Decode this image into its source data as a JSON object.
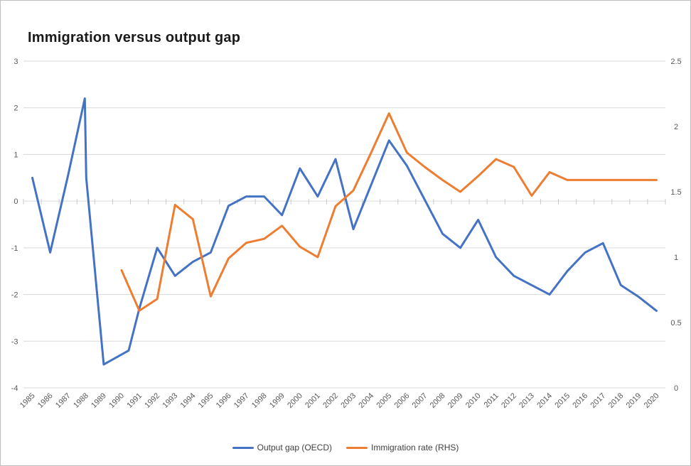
{
  "title": "Immigration versus output gap",
  "colors": {
    "output_gap": "#4472C4",
    "immigration_rate": "#ED7D31",
    "gridline": "#D9D9D9",
    "tick_mark": "#C9C9C9",
    "axis_text": "#595959",
    "legend_text": "#404040",
    "title_text": "#1A1A1A",
    "frame_border": "#BFBFBF"
  },
  "chart_data": {
    "type": "line",
    "title": "Immigration versus output gap",
    "grid": "horizontal",
    "legend_position": "bottom",
    "categories": [
      "1985",
      "1986",
      "1987",
      "1988",
      "1989",
      "1990",
      "1991",
      "1992",
      "1993",
      "1994",
      "1995",
      "1996",
      "1997",
      "1998",
      "1999",
      "2000",
      "2001",
      "2002",
      "2003",
      "2004",
      "2005",
      "2006",
      "2007",
      "2008",
      "2009",
      "2010",
      "2011",
      "2012",
      "2013",
      "2014",
      "2015",
      "2016",
      "2017",
      "2018",
      "2019",
      "2020"
    ],
    "left_axis": {
      "min": -4,
      "max": 3,
      "ticks": [
        "3",
        "2",
        "1",
        "0",
        "-1",
        "-2",
        "-3",
        "-4"
      ]
    },
    "right_axis": {
      "min": 0,
      "max": 2.5,
      "ticks": [
        "2.5",
        "2",
        "1.5",
        "1",
        "0.5",
        "0"
      ]
    },
    "series": [
      {
        "name": "Output gap (OECD)",
        "key": "output-gap",
        "axis": "left",
        "color": "#4472C4",
        "points": [
          [
            1985,
            0.5
          ],
          [
            1986,
            -1.1
          ],
          [
            1987,
            0.55
          ],
          [
            1987.94,
            2.2
          ],
          [
            1988.02,
            0.5
          ],
          [
            1989,
            -3.5
          ],
          [
            1990.4,
            -3.2
          ],
          [
            1991,
            -2.3
          ],
          [
            1992,
            -1.0
          ],
          [
            1993,
            -1.6
          ],
          [
            1994,
            -1.3
          ],
          [
            1995,
            -1.1
          ],
          [
            1996,
            -0.1
          ],
          [
            1997,
            0.1
          ],
          [
            1998,
            0.1
          ],
          [
            1999,
            -0.3
          ],
          [
            2000,
            0.7
          ],
          [
            2001,
            0.1
          ],
          [
            2002,
            0.9
          ],
          [
            2003,
            -0.6
          ],
          [
            2004,
            0.35
          ],
          [
            2005,
            1.3
          ],
          [
            2006,
            0.76
          ],
          [
            2007,
            0.03
          ],
          [
            2008,
            -0.7
          ],
          [
            2009,
            -1.0
          ],
          [
            2010,
            -0.4
          ],
          [
            2011,
            -1.2
          ],
          [
            2012,
            -1.6
          ],
          [
            2013,
            -1.8
          ],
          [
            2014,
            -2.0
          ],
          [
            2015,
            -1.5
          ],
          [
            2016,
            -1.1
          ],
          [
            2017,
            -0.9
          ],
          [
            2018,
            -1.8
          ],
          [
            2019,
            -2.05
          ],
          [
            2020,
            -2.35
          ]
        ]
      },
      {
        "name": "Immigration rate (RHS)",
        "key": "immigration-rate",
        "axis": "right",
        "color": "#ED7D31",
        "points": [
          [
            1990,
            0.9
          ],
          [
            1991,
            0.59
          ],
          [
            1992,
            0.68
          ],
          [
            1993,
            1.4
          ],
          [
            1994,
            1.29
          ],
          [
            1995,
            0.7
          ],
          [
            1996,
            0.99
          ],
          [
            1997,
            1.11
          ],
          [
            1998,
            1.14
          ],
          [
            1999,
            1.24
          ],
          [
            2000,
            1.08
          ],
          [
            2001,
            1.0
          ],
          [
            2002,
            1.39
          ],
          [
            2003,
            1.51
          ],
          [
            2004,
            1.8
          ],
          [
            2005,
            2.1
          ],
          [
            2006,
            1.8
          ],
          [
            2007,
            1.69
          ],
          [
            2008,
            1.59
          ],
          [
            2009,
            1.5
          ],
          [
            2010,
            1.62
          ],
          [
            2011,
            1.75
          ],
          [
            2012,
            1.69
          ],
          [
            2013,
            1.47
          ],
          [
            2014,
            1.65
          ],
          [
            2015,
            1.59
          ],
          [
            2016,
            1.59
          ],
          [
            2017,
            1.59
          ],
          [
            2018,
            1.59
          ],
          [
            2019,
            1.59
          ],
          [
            2020,
            1.59
          ]
        ]
      }
    ]
  }
}
